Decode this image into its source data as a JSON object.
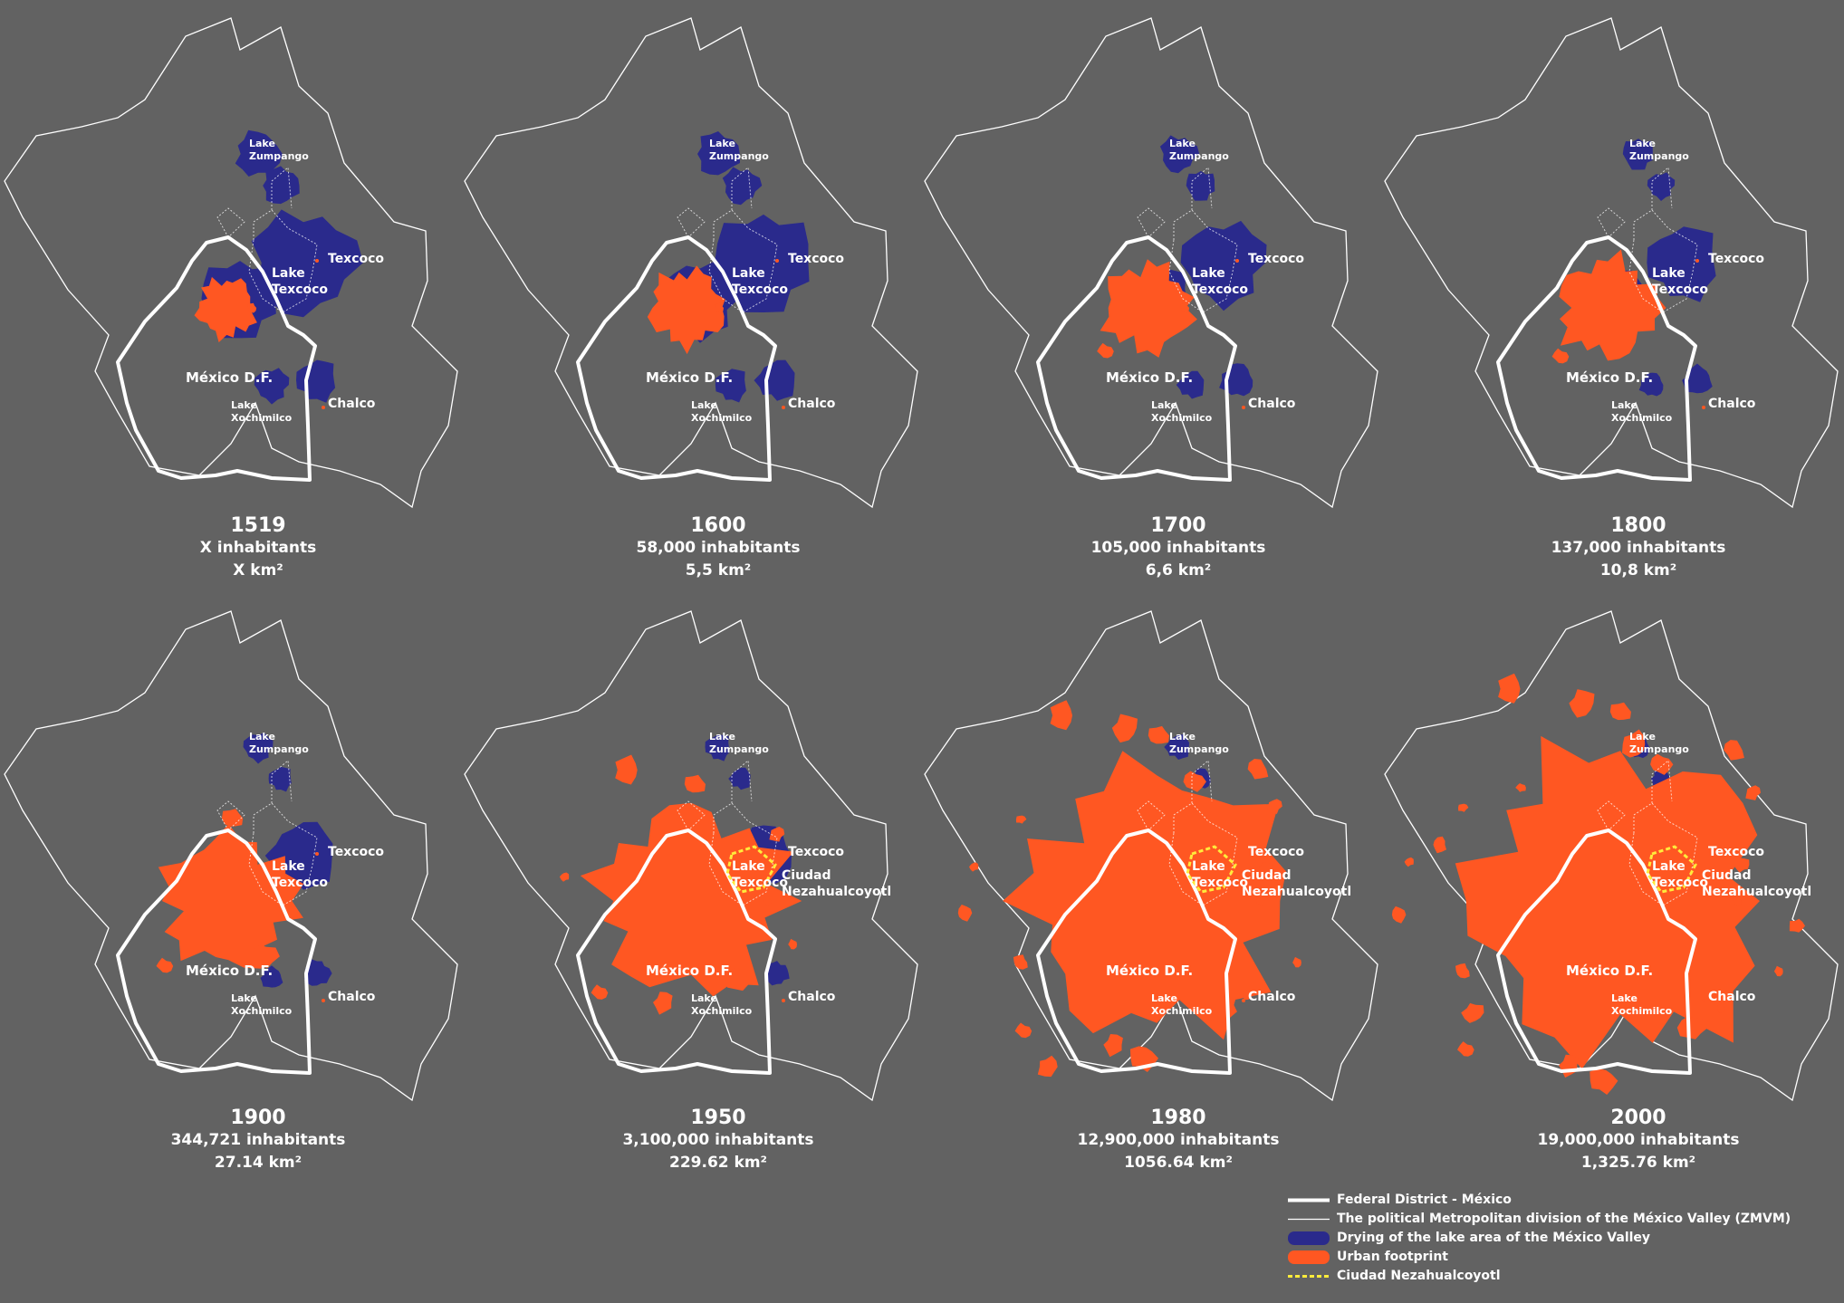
{
  "colors": {
    "background": "#626262",
    "lake": "#2a2a8c",
    "urban": "#ff5722",
    "federal_district": "#ffffff",
    "zmvm": "#ffffff",
    "nezahualcoyotl": "#ffeb3b"
  },
  "panels": [
    {
      "year": "1519",
      "inhabitants": "X  inhabitants",
      "area": "X km²",
      "urban_level": 0.02,
      "lake_level": 1.0,
      "labels": {
        "lake_zumpango": [
          "Lake",
          "Zumpango"
        ],
        "texcoco": "Texcoco",
        "lake_texcoco": [
          "Lake",
          "Texcoco"
        ],
        "mexico_df": "México D.F.",
        "lake_xochimilco": [
          "Lake",
          "Xochimilco"
        ],
        "chalco": "Chalco",
        "ciudad_nezahualcoyotl": null
      }
    },
    {
      "year": "1600",
      "inhabitants": "58,000 inhabitants",
      "area": "5,5 km²",
      "urban_level": 0.04,
      "lake_level": 0.95,
      "labels": {
        "lake_zumpango": [
          "Lake",
          "Zumpango"
        ],
        "texcoco": "Texcoco",
        "lake_texcoco": [
          "Lake",
          "Texcoco"
        ],
        "mexico_df": "México D.F.",
        "lake_xochimilco": [
          "Lake",
          "Xochimilco"
        ],
        "chalco": "Chalco",
        "ciudad_nezahualcoyotl": null
      }
    },
    {
      "year": "1700",
      "inhabitants": "105,000 inhabitants",
      "area": "6,6 km²",
      "urban_level": 0.06,
      "lake_level": 0.7,
      "labels": {
        "lake_zumpango": [
          "Lake",
          "Zumpango"
        ],
        "texcoco": "Texcoco",
        "lake_texcoco": [
          "Lake",
          "Texcoco"
        ],
        "mexico_df": "México D.F.",
        "lake_xochimilco": [
          "Lake",
          "Xochimilco"
        ],
        "chalco": "Chalco",
        "ciudad_nezahualcoyotl": null
      }
    },
    {
      "year": "1800",
      "inhabitants": "137,000 inhabitants",
      "area": "10,8 km²",
      "urban_level": 0.08,
      "lake_level": 0.55,
      "labels": {
        "lake_zumpango": [
          "Lake",
          "Zumpango"
        ],
        "texcoco": "Texcoco",
        "lake_texcoco": [
          "Lake",
          "Texcoco"
        ],
        "mexico_df": "México D.F.",
        "lake_xochimilco": [
          "Lake",
          "Xochimilco"
        ],
        "chalco": "Chalco",
        "ciudad_nezahualcoyotl": null
      }
    },
    {
      "year": "1900",
      "inhabitants": "344,721 inhabitants",
      "area": "27.14 km²",
      "urban_level": 0.16,
      "lake_level": 0.45,
      "labels": {
        "lake_zumpango": [
          "Lake",
          "Zumpango"
        ],
        "texcoco": "Texcoco",
        "lake_texcoco": [
          "Lake",
          "Texcoco"
        ],
        "mexico_df": "México D.F.",
        "lake_xochimilco": [
          "Lake",
          "Xochimilco"
        ],
        "chalco": "Chalco",
        "ciudad_nezahualcoyotl": null
      }
    },
    {
      "year": "1950",
      "inhabitants": "3,100,000 inhabitants",
      "area": "229.62 km²",
      "urban_level": 0.35,
      "lake_level": 0.35,
      "labels": {
        "lake_zumpango": [
          "Lake",
          "Zumpango"
        ],
        "texcoco": "Texcoco",
        "lake_texcoco": [
          "Lake",
          "Texcoco"
        ],
        "mexico_df": "México D.F.",
        "lake_xochimilco": [
          "Lake",
          "Xochimilco"
        ],
        "chalco": "Chalco",
        "ciudad_nezahualcoyotl": [
          "Ciudad",
          "Nezahualcoyotl"
        ]
      }
    },
    {
      "year": "1980",
      "inhabitants": "12,900,000 inhabitants",
      "area": "1056.64 km²",
      "urban_level": 0.75,
      "lake_level": 0.3,
      "labels": {
        "lake_zumpango": [
          "Lake",
          "Zumpango"
        ],
        "texcoco": "Texcoco",
        "lake_texcoco": [
          "Lake",
          "Texcoco"
        ],
        "mexico_df": "México D.F.",
        "lake_xochimilco": [
          "Lake",
          "Xochimilco"
        ],
        "chalco": "Chalco",
        "ciudad_nezahualcoyotl": [
          "Ciudad",
          "Nezahualcoyotl"
        ]
      }
    },
    {
      "year": "2000",
      "inhabitants": "19,000,000 inhabitants",
      "area": "1,325.76 km²",
      "urban_level": 1.0,
      "lake_level": 0.25,
      "labels": {
        "lake_zumpango": [
          "Lake",
          "Zumpango"
        ],
        "texcoco": "Texcoco",
        "lake_texcoco": [
          "Lake",
          "Texcoco"
        ],
        "mexico_df": "México D.F.",
        "lake_xochimilco": [
          "Lake",
          "Xochimilco"
        ],
        "chalco": "Chalco",
        "ciudad_nezahualcoyotl": [
          "Ciudad",
          "Nezahualcoyotl"
        ]
      }
    }
  ],
  "legend": [
    {
      "symbol": "thick-white-line",
      "label": "Federal District - México"
    },
    {
      "symbol": "thin-white-line",
      "label": "The political Metropolitan division of the México Valley (ZMVM)"
    },
    {
      "symbol": "blue-blob",
      "label": "Drying of the lake area of the México Valley"
    },
    {
      "symbol": "orange-blob",
      "label": "Urban footprint"
    },
    {
      "symbol": "yellow-dashed-line",
      "label": "Ciudad Nezahualcoyotl"
    }
  ]
}
